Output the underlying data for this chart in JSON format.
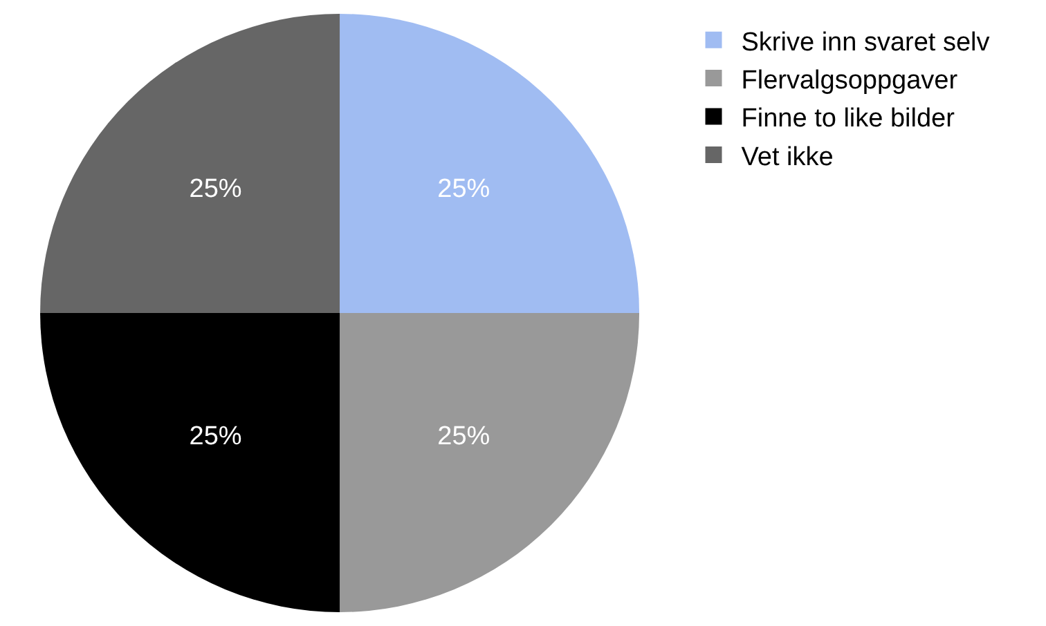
{
  "chart_data": {
    "type": "pie",
    "categories": [
      "Skrive inn svaret selv",
      "Flervalgsoppgaver",
      "Finne to like bilder",
      "Vet ikke"
    ],
    "values": [
      25,
      25,
      25,
      25
    ],
    "value_labels": [
      "25%",
      "25%",
      "25%",
      "25%"
    ],
    "colors": [
      "#a0bcf2",
      "#999999",
      "#000000",
      "#666666"
    ],
    "legend": "top right"
  }
}
